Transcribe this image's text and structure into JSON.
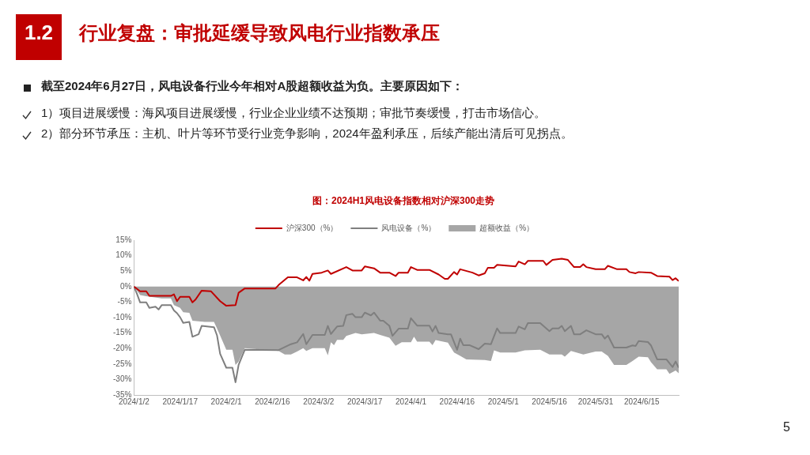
{
  "chart_data": {
    "type": "line",
    "title": "行业复盘：审批延缓导致风电行业指数承压",
    "subtitle": "图：2024H1风电设备指数相对沪深300走势",
    "annotations": [
      "1.2",
      "截至2024年6月27日，风电设备行业今年相对A股超额收益为负。主要原因如下：",
      "1）项目进展缓慢：海风项目进展缓慢，行业企业业绩不达预期；审批节奏缓慢，打击市场信心。",
      "2）部分环节承压：主机、叶片等环节受行业竞争影响，2024年盈利承压，后续产能出清后可见拐点。",
      "5"
    ],
    "legend": "top",
    "xlim": [
      "2024-01-02",
      "2024-06-27"
    ],
    "xticks": [
      {
        "value": "2024-01-02",
        "label": "2024/1/2"
      },
      {
        "value": "2024-01-17",
        "label": "2024/1/17"
      },
      {
        "value": "2024-02-01",
        "label": "2024/2/1"
      },
      {
        "value": "2024-02-16",
        "label": "2024/2/16"
      },
      {
        "value": "2024-03-02",
        "label": "2024/3/2"
      },
      {
        "value": "2024-03-17",
        "label": "2024/3/17"
      },
      {
        "value": "2024-04-01",
        "label": "2024/4/1"
      },
      {
        "value": "2024-04-16",
        "label": "2024/4/16"
      },
      {
        "value": "2024-05-01",
        "label": "2024/5/1"
      },
      {
        "value": "2024-05-16",
        "label": "2024/5/16"
      },
      {
        "value": "2024-05-31",
        "label": "2024/5/31"
      },
      {
        "value": "2024-06-15",
        "label": "2024/6/15"
      }
    ],
    "ylim": [
      -35,
      15
    ],
    "yticks": [
      {
        "value": -35,
        "label": "-35%"
      },
      {
        "value": -30,
        "label": "-30%"
      },
      {
        "value": -25,
        "label": "-25%"
      },
      {
        "value": -20,
        "label": "-20%"
      },
      {
        "value": -15,
        "label": "-15%"
      },
      {
        "value": -10,
        "label": "-10%"
      },
      {
        "value": -5,
        "label": "-5%"
      },
      {
        "value": 0,
        "label": "0%"
      },
      {
        "value": 5,
        "label": "5%"
      },
      {
        "value": 10,
        "label": "10%"
      },
      {
        "value": 15,
        "label": "15%"
      }
    ],
    "series": [
      {
        "name": "超额收益（%）",
        "type": "area",
        "color": "#a6a6a6",
        "x": [
          "2024-01-02",
          "2024-01-04",
          "2024-01-06",
          "2024-01-11",
          "2024-01-14",
          "2024-01-15",
          "2024-01-17",
          "2024-01-18",
          "2024-01-20",
          "2024-01-21",
          "2024-01-25",
          "2024-01-28",
          "2024-01-29",
          "2024-01-31",
          "2024-02-01",
          "2024-02-03",
          "2024-02-04",
          "2024-02-05",
          "2024-02-07",
          "2024-02-18",
          "2024-02-20",
          "2024-02-22",
          "2024-02-24",
          "2024-02-26",
          "2024-02-27",
          "2024-02-29",
          "2024-03-04",
          "2024-03-05",
          "2024-03-06",
          "2024-03-07",
          "2024-03-08",
          "2024-03-10",
          "2024-03-11",
          "2024-03-14",
          "2024-03-16",
          "2024-03-20",
          "2024-03-22",
          "2024-03-25",
          "2024-03-27",
          "2024-03-29",
          "2024-04-01",
          "2024-04-02",
          "2024-04-03",
          "2024-04-07",
          "2024-04-08",
          "2024-04-09",
          "2024-04-13",
          "2024-04-15",
          "2024-04-17",
          "2024-04-19",
          "2024-04-25",
          "2024-04-27",
          "2024-04-28",
          "2024-04-30",
          "2024-05-05",
          "2024-05-08",
          "2024-05-13",
          "2024-05-16",
          "2024-05-20",
          "2024-05-21",
          "2024-05-23",
          "2024-05-27",
          "2024-05-31",
          "2024-06-02",
          "2024-06-04",
          "2024-06-06",
          "2024-06-10",
          "2024-06-12",
          "2024-06-14",
          "2024-06-17",
          "2024-06-18",
          "2024-06-20",
          "2024-06-23",
          "2024-06-24",
          "2024-06-26",
          "2024-06-27"
        ],
        "values": [
          0,
          -2.7,
          -3.1,
          -3.8,
          -3.8,
          -6,
          -6.9,
          -8.3,
          -8.5,
          -11,
          -11.4,
          -11.4,
          -13.5,
          -18.1,
          -20.4,
          -20.4,
          -25.3,
          -24.2,
          -19.9,
          -20.8,
          -21.9,
          -21.9,
          -21,
          -19.9,
          -20.8,
          -19.9,
          -19.9,
          -22.2,
          -18,
          -18.9,
          -17.2,
          -17.2,
          -15.9,
          -15,
          -15.4,
          -15,
          -15.6,
          -16.5,
          -19.1,
          -18,
          -18,
          -16.2,
          -17.8,
          -17.8,
          -18.9,
          -17.3,
          -18.1,
          -21.3,
          -22.4,
          -23.5,
          -23.7,
          -24,
          -20.6,
          -21.3,
          -21.3,
          -20.6,
          -20.4,
          -21.9,
          -21.9,
          -22.6,
          -20.8,
          -21.9,
          -21,
          -21,
          -22.4,
          -25.3,
          -25.3,
          -24,
          -22.6,
          -22.8,
          -24.4,
          -26.7,
          -26.7,
          -28.2,
          -27.1,
          -28
        ]
      },
      {
        "name": "沪深300（%）",
        "type": "line",
        "color": "#c00000",
        "x": [
          "2024-01-02",
          "2024-01-04",
          "2024-01-06",
          "2024-01-07",
          "2024-01-11",
          "2024-01-14",
          "2024-01-15",
          "2024-01-16",
          "2024-01-17",
          "2024-01-20",
          "2024-01-21",
          "2024-01-22",
          "2024-01-24",
          "2024-01-27",
          "2024-01-30",
          "2024-02-01",
          "2024-02-04",
          "2024-02-05",
          "2024-02-07",
          "2024-02-17",
          "2024-02-18",
          "2024-02-21",
          "2024-02-24",
          "2024-02-26",
          "2024-02-27",
          "2024-02-28",
          "2024-02-29",
          "2024-03-03",
          "2024-03-05",
          "2024-03-06",
          "2024-03-11",
          "2024-03-13",
          "2024-03-16",
          "2024-03-17",
          "2024-03-20",
          "2024-03-22",
          "2024-03-25",
          "2024-03-27",
          "2024-03-28",
          "2024-03-31",
          "2024-04-01",
          "2024-04-03",
          "2024-04-07",
          "2024-04-10",
          "2024-04-12",
          "2024-04-13",
          "2024-04-15",
          "2024-04-16",
          "2024-04-17",
          "2024-04-21",
          "2024-04-23",
          "2024-04-25",
          "2024-04-26",
          "2024-04-28",
          "2024-04-29",
          "2024-05-05",
          "2024-05-06",
          "2024-05-08",
          "2024-05-09",
          "2024-05-14",
          "2024-05-15",
          "2024-05-17",
          "2024-05-20",
          "2024-05-22",
          "2024-05-24",
          "2024-05-26",
          "2024-05-27",
          "2024-05-28",
          "2024-05-31",
          "2024-06-03",
          "2024-06-04",
          "2024-06-07",
          "2024-06-10",
          "2024-06-11",
          "2024-06-13",
          "2024-06-14",
          "2024-06-18",
          "2024-06-20",
          "2024-06-24",
          "2024-06-25",
          "2024-06-26",
          "2024-06-27"
        ],
        "values": [
          0,
          -1.5,
          -1.5,
          -3,
          -3,
          -3,
          -2.5,
          -4.7,
          -3.3,
          -3.3,
          -5.1,
          -4.2,
          -1.3,
          -1.5,
          -4.7,
          -6.2,
          -6,
          -2,
          -0.6,
          -0.6,
          0.5,
          3,
          3,
          2,
          3.1,
          1.9,
          4.1,
          4.5,
          5.2,
          4.1,
          6.3,
          5.2,
          5.2,
          6.5,
          5.9,
          4.5,
          4.5,
          3.4,
          4.5,
          4.5,
          6.3,
          5.4,
          5.4,
          3.9,
          2.5,
          2.5,
          4.7,
          3.9,
          5.6,
          4.5,
          3.6,
          4.3,
          6.1,
          6.1,
          7,
          6.5,
          8.1,
          7.2,
          8.3,
          8.3,
          7,
          8.6,
          9,
          8.6,
          6.3,
          6.3,
          7.2,
          6.3,
          5.6,
          5.6,
          6.7,
          5.6,
          5.6,
          4.7,
          4.3,
          4.7,
          4.5,
          3.4,
          3.2,
          2.1,
          2.7,
          1.8
        ]
      },
      {
        "name": "风电设备（%）",
        "type": "line",
        "color": "#7f7f7f",
        "x": [
          "2024-01-02",
          "2024-01-03",
          "2024-01-04",
          "2024-01-06",
          "2024-01-07",
          "2024-01-09",
          "2024-01-10",
          "2024-01-11",
          "2024-01-14",
          "2024-01-15",
          "2024-01-16",
          "2024-01-17",
          "2024-01-18",
          "2024-01-20",
          "2024-01-21",
          "2024-01-23",
          "2024-01-24",
          "2024-01-28",
          "2024-01-29",
          "2024-01-30",
          "2024-02-01",
          "2024-02-03",
          "2024-02-04",
          "2024-02-05",
          "2024-02-07",
          "2024-02-18",
          "2024-02-22",
          "2024-02-24",
          "2024-02-26",
          "2024-02-27",
          "2024-02-29",
          "2024-03-04",
          "2024-03-05",
          "2024-03-06",
          "2024-03-08",
          "2024-03-10",
          "2024-03-11",
          "2024-03-13",
          "2024-03-14",
          "2024-03-16",
          "2024-03-17",
          "2024-03-19",
          "2024-03-20",
          "2024-03-22",
          "2024-03-23",
          "2024-03-25",
          "2024-03-26",
          "2024-03-28",
          "2024-03-31",
          "2024-04-01",
          "2024-04-03",
          "2024-04-07",
          "2024-04-08",
          "2024-04-09",
          "2024-04-10",
          "2024-04-13",
          "2024-04-14",
          "2024-04-16",
          "2024-04-17",
          "2024-04-18",
          "2024-04-20",
          "2024-04-23",
          "2024-04-25",
          "2024-04-27",
          "2024-04-29",
          "2024-04-30",
          "2024-05-05",
          "2024-05-06",
          "2024-05-08",
          "2024-05-09",
          "2024-05-13",
          "2024-05-16",
          "2024-05-17",
          "2024-05-19",
          "2024-05-20",
          "2024-05-21",
          "2024-05-23",
          "2024-05-24",
          "2024-05-26",
          "2024-05-28",
          "2024-05-31",
          "2024-06-02",
          "2024-06-03",
          "2024-06-04",
          "2024-06-06",
          "2024-06-10",
          "2024-06-12",
          "2024-06-13",
          "2024-06-14",
          "2024-06-17",
          "2024-06-18",
          "2024-06-20",
          "2024-06-23",
          "2024-06-25",
          "2024-06-26",
          "2024-06-27"
        ],
        "values": [
          0,
          -2.4,
          -5.1,
          -5.1,
          -6.9,
          -6.5,
          -7.4,
          -6,
          -6,
          -7.7,
          -8.6,
          -9.9,
          -11.7,
          -11.4,
          -16.2,
          -15.4,
          -12.7,
          -13.1,
          -15.8,
          -21.7,
          -26.2,
          -26.2,
          -30.9,
          -25.3,
          -20.4,
          -20.5,
          -18.6,
          -18,
          -15.3,
          -18.6,
          -15.6,
          -15.6,
          -12.7,
          -15.3,
          -12.9,
          -12.7,
          -9.2,
          -8.8,
          -9.9,
          -9.9,
          -8.4,
          -9.3,
          -8.4,
          -11,
          -11,
          -12.7,
          -15.9,
          -13.6,
          -13.6,
          -10.2,
          -12.6,
          -12.6,
          -14.5,
          -12.7,
          -15,
          -15.4,
          -15.4,
          -20.4,
          -16.8,
          -18.9,
          -18.9,
          -20.2,
          -18.4,
          -18.6,
          -13.5,
          -15,
          -15,
          -12.9,
          -13.8,
          -11.8,
          -11.8,
          -14.4,
          -13.5,
          -13.5,
          -12.7,
          -14.4,
          -12.7,
          -15.4,
          -15.4,
          -14.1,
          -15.4,
          -15.4,
          -16.8,
          -15.8,
          -19.7,
          -19.7,
          -19,
          -19.2,
          -17.6,
          -17.9,
          -19,
          -23.5,
          -23.5,
          -26,
          -24.2,
          -26.2
        ]
      }
    ]
  }
}
